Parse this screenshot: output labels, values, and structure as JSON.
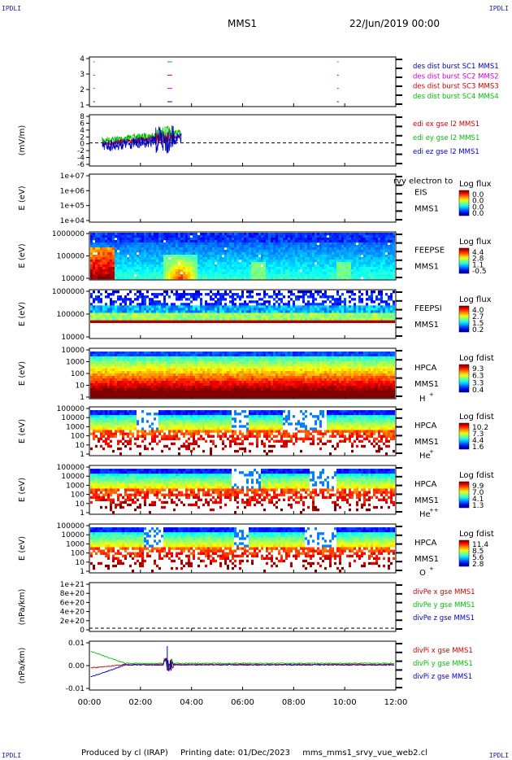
{
  "header": {
    "corner_tl": "IPDLI",
    "corner_tr": "IPDLI",
    "corner_bl": "IPDLI",
    "corner_br": "IPDLI",
    "mission": "MMS1",
    "date": "22/Jun/2019 00:00"
  },
  "footer": {
    "produced": "Produced by cl (IRAP)",
    "printing": "Printing date: 01/Dec/2023",
    "file": "mms_mms1_srvy_vue_web2.cl"
  },
  "colors": {
    "red": "#d00000",
    "green": "#00c000",
    "blue": "#0000c0",
    "magenta": "#d000d0"
  },
  "chart_data": {
    "type": "stacked-panels",
    "x": {
      "ticks": [
        "00:00",
        "02:00",
        "04:00",
        "06:00",
        "08:00",
        "10:00",
        "12:00"
      ],
      "range_hours": [
        0,
        12
      ]
    },
    "panels": [
      {
        "id": "burst",
        "yticks": [
          "4",
          "3",
          "2",
          "1"
        ],
        "legend": [
          {
            "label": "des dist burst SC1 MMS1",
            "color": "#0000c0"
          },
          {
            "label": "des dist burst SC2 MMS2",
            "color": "#d000d0"
          },
          {
            "label": "des dist burst SC3 MMS3",
            "color": "#d00000"
          },
          {
            "label": "des dist burst SC4 MMS4",
            "color": "#00c000"
          }
        ],
        "segments_hours": [
          0.15,
          3.05,
          9.7
        ]
      },
      {
        "id": "edi",
        "ylabel": "(mV/m)",
        "yticks": [
          "8",
          "6",
          "4",
          "2",
          "0",
          "-2",
          "-4",
          "-6"
        ],
        "legend": [
          {
            "label": "edi ex gse l2 MMS1",
            "color": "#d00000"
          },
          {
            "label": "edi ey gse l2 MMS1",
            "color": "#00c000"
          },
          {
            "label": "edi ez gse l2 MMS1",
            "color": "#0000c0"
          }
        ],
        "data_range_hours": [
          0.5,
          3.6
        ]
      },
      {
        "id": "eis",
        "ylabel": "E (eV)",
        "yticks": [
          "1e+07",
          "1e+06",
          "1e+05",
          "1e+04"
        ],
        "instrument": "EIS",
        "sub": "MMS1",
        "overlay": "rvy electron to",
        "cbar": {
          "title": "Log flux",
          "labels": [
            "0.0",
            "0.0",
            "0.0",
            "0.0"
          ]
        }
      },
      {
        "id": "feepse",
        "ylabel": "E (eV)",
        "yticks": [
          "1000000",
          "100000",
          "10000"
        ],
        "instrument": "FEEPSE",
        "sub": "MMS1",
        "cbar": {
          "title": "Log flux",
          "labels": [
            "4.4",
            "2.8",
            "1.1",
            "-0.5"
          ]
        }
      },
      {
        "id": "feepsi",
        "ylabel": "E (eV)",
        "yticks": [
          "1000000",
          "100000",
          "10000"
        ],
        "instrument": "FEEPSI",
        "sub": "MMS1",
        "cbar": {
          "title": "Log flux",
          "labels": [
            "4.0",
            "2.7",
            "1.5",
            "0.2"
          ]
        }
      },
      {
        "id": "hpca_h",
        "ylabel": "E (eV)",
        "yticks": [
          "10000",
          "1000",
          "100",
          "10",
          "1"
        ],
        "instrument": "HPCA",
        "sub": "MMS1",
        "species": "H",
        "charge": "+",
        "cbar": {
          "title": "Log fdist",
          "labels": [
            "9.3",
            "6.3",
            "3.3",
            "0.4"
          ]
        }
      },
      {
        "id": "hpca_he",
        "ylabel": "E (eV)",
        "yticks": [
          "100000",
          "10000",
          "1000",
          "100",
          "10",
          "1"
        ],
        "instrument": "HPCA",
        "sub": "MMS1",
        "species": "He",
        "charge": "+",
        "cbar": {
          "title": "Log fdist",
          "labels": [
            "10.2",
            "7.3",
            "4.4",
            "1.6"
          ]
        }
      },
      {
        "id": "hpca_he2",
        "ylabel": "E (eV)",
        "yticks": [
          "100000",
          "10000",
          "1000",
          "100",
          "10",
          "1"
        ],
        "instrument": "HPCA",
        "sub": "MMS1",
        "species": "He",
        "charge": "++",
        "cbar": {
          "title": "Log fdist",
          "labels": [
            "9.9",
            "7.0",
            "4.1",
            "1.3"
          ]
        }
      },
      {
        "id": "hpca_o",
        "ylabel": "E (eV)",
        "yticks": [
          "100000",
          "10000",
          "1000",
          "100",
          "10",
          "1"
        ],
        "instrument": "HPCA",
        "sub": "MMS1",
        "species": "O",
        "charge": "+",
        "cbar": {
          "title": "Log fdist",
          "labels": [
            "11.4",
            "8.5",
            "5.6",
            "2.8"
          ]
        }
      },
      {
        "id": "divpe",
        "ylabel": "(nPa/km)",
        "yticks": [
          "1e+21",
          "8e+20",
          "6e+20",
          "4e+20",
          "2e+20",
          "0"
        ],
        "legend": [
          {
            "label": "divPe x gse MMS1",
            "color": "#d00000"
          },
          {
            "label": "divPe y gse MMS1",
            "color": "#00c000"
          },
          {
            "label": "divPe z gse MMS1",
            "color": "#0000c0"
          }
        ]
      },
      {
        "id": "divpi",
        "ylabel": "(nPa/km)",
        "yticks": [
          "0.01",
          "0.00",
          "-0.01"
        ],
        "legend": [
          {
            "label": "divPi x gse MMS1",
            "color": "#d00000"
          },
          {
            "label": "divPi y gse MMS1",
            "color": "#00c000"
          },
          {
            "label": "divPi z gse MMS1",
            "color": "#0000c0"
          }
        ]
      }
    ]
  }
}
